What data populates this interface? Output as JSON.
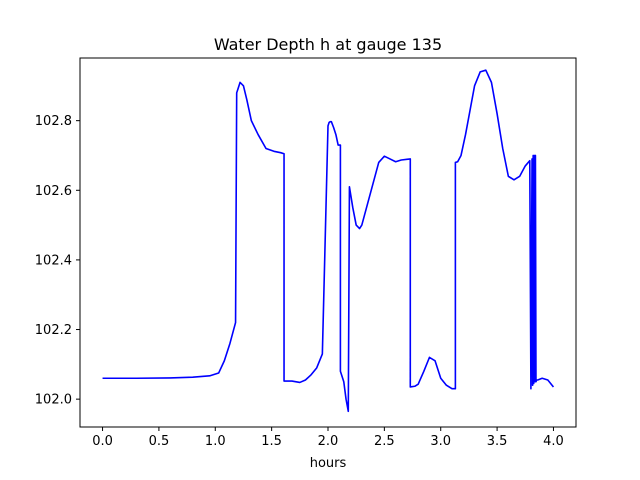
{
  "chart_data": {
    "type": "line",
    "title": "Water Depth h at gauge 135",
    "xlabel": "hours",
    "ylabel": "",
    "xlim": [
      -0.2,
      4.2
    ],
    "ylim": [
      101.92,
      102.98
    ],
    "x_ticks": [
      0.0,
      0.5,
      1.0,
      1.5,
      2.0,
      2.5,
      3.0,
      3.5,
      4.0
    ],
    "x_tick_labels": [
      "0.0",
      "0.5",
      "1.0",
      "1.5",
      "2.0",
      "2.5",
      "3.0",
      "3.5",
      "4.0"
    ],
    "y_ticks": [
      102.0,
      102.2,
      102.4,
      102.6,
      102.8
    ],
    "y_tick_labels": [
      "102.0",
      "102.2",
      "102.4",
      "102.6",
      "102.8"
    ],
    "grid": false,
    "legend": "none",
    "series": [
      {
        "color": "#0000ff",
        "x": [
          0.0,
          0.3,
          0.6,
          0.8,
          0.95,
          1.03,
          1.08,
          1.13,
          1.18,
          1.19,
          1.2,
          1.22,
          1.25,
          1.28,
          1.32,
          1.38,
          1.45,
          1.52,
          1.58,
          1.61,
          1.61,
          1.68,
          1.75,
          1.8,
          1.85,
          1.9,
          1.95,
          2.0,
          2.01,
          2.02,
          2.03,
          2.05,
          2.07,
          2.09,
          2.11,
          2.11,
          2.14,
          2.16,
          2.18,
          2.19,
          2.2,
          2.22,
          2.25,
          2.28,
          2.3,
          2.35,
          2.4,
          2.45,
          2.5,
          2.55,
          2.6,
          2.65,
          2.7,
          2.73,
          2.73,
          2.77,
          2.8,
          2.85,
          2.9,
          2.95,
          3.0,
          3.05,
          3.1,
          3.13,
          3.13,
          3.15,
          3.18,
          3.22,
          3.26,
          3.3,
          3.35,
          3.4,
          3.45,
          3.5,
          3.55,
          3.6,
          3.65,
          3.7,
          3.75,
          3.79,
          3.8,
          3.81,
          3.815,
          3.82,
          3.825,
          3.83,
          3.835,
          3.84,
          3.845,
          3.85,
          3.86,
          3.9,
          3.95,
          4.0
        ],
        "y": [
          102.06,
          102.06,
          102.061,
          102.063,
          102.067,
          102.075,
          102.11,
          102.16,
          102.22,
          102.88,
          102.89,
          102.91,
          102.9,
          102.86,
          102.8,
          102.76,
          102.72,
          102.712,
          102.708,
          102.705,
          102.052,
          102.052,
          102.048,
          102.055,
          102.07,
          102.09,
          102.13,
          102.785,
          102.795,
          102.797,
          102.797,
          102.78,
          102.76,
          102.73,
          102.73,
          102.08,
          102.05,
          102.0,
          101.965,
          102.61,
          102.59,
          102.55,
          102.5,
          102.49,
          102.5,
          102.56,
          102.62,
          102.68,
          102.698,
          102.69,
          102.682,
          102.687,
          102.689,
          102.69,
          102.035,
          102.037,
          102.043,
          102.08,
          102.12,
          102.11,
          102.06,
          102.04,
          102.03,
          102.03,
          102.68,
          102.682,
          102.7,
          102.76,
          102.83,
          102.9,
          102.94,
          102.945,
          102.91,
          102.82,
          102.72,
          102.64,
          102.63,
          102.64,
          102.67,
          102.685,
          102.03,
          102.69,
          102.04,
          102.7,
          102.045,
          102.7,
          102.05,
          102.7,
          102.05,
          102.055,
          102.055,
          102.06,
          102.055,
          102.035
        ]
      }
    ]
  }
}
